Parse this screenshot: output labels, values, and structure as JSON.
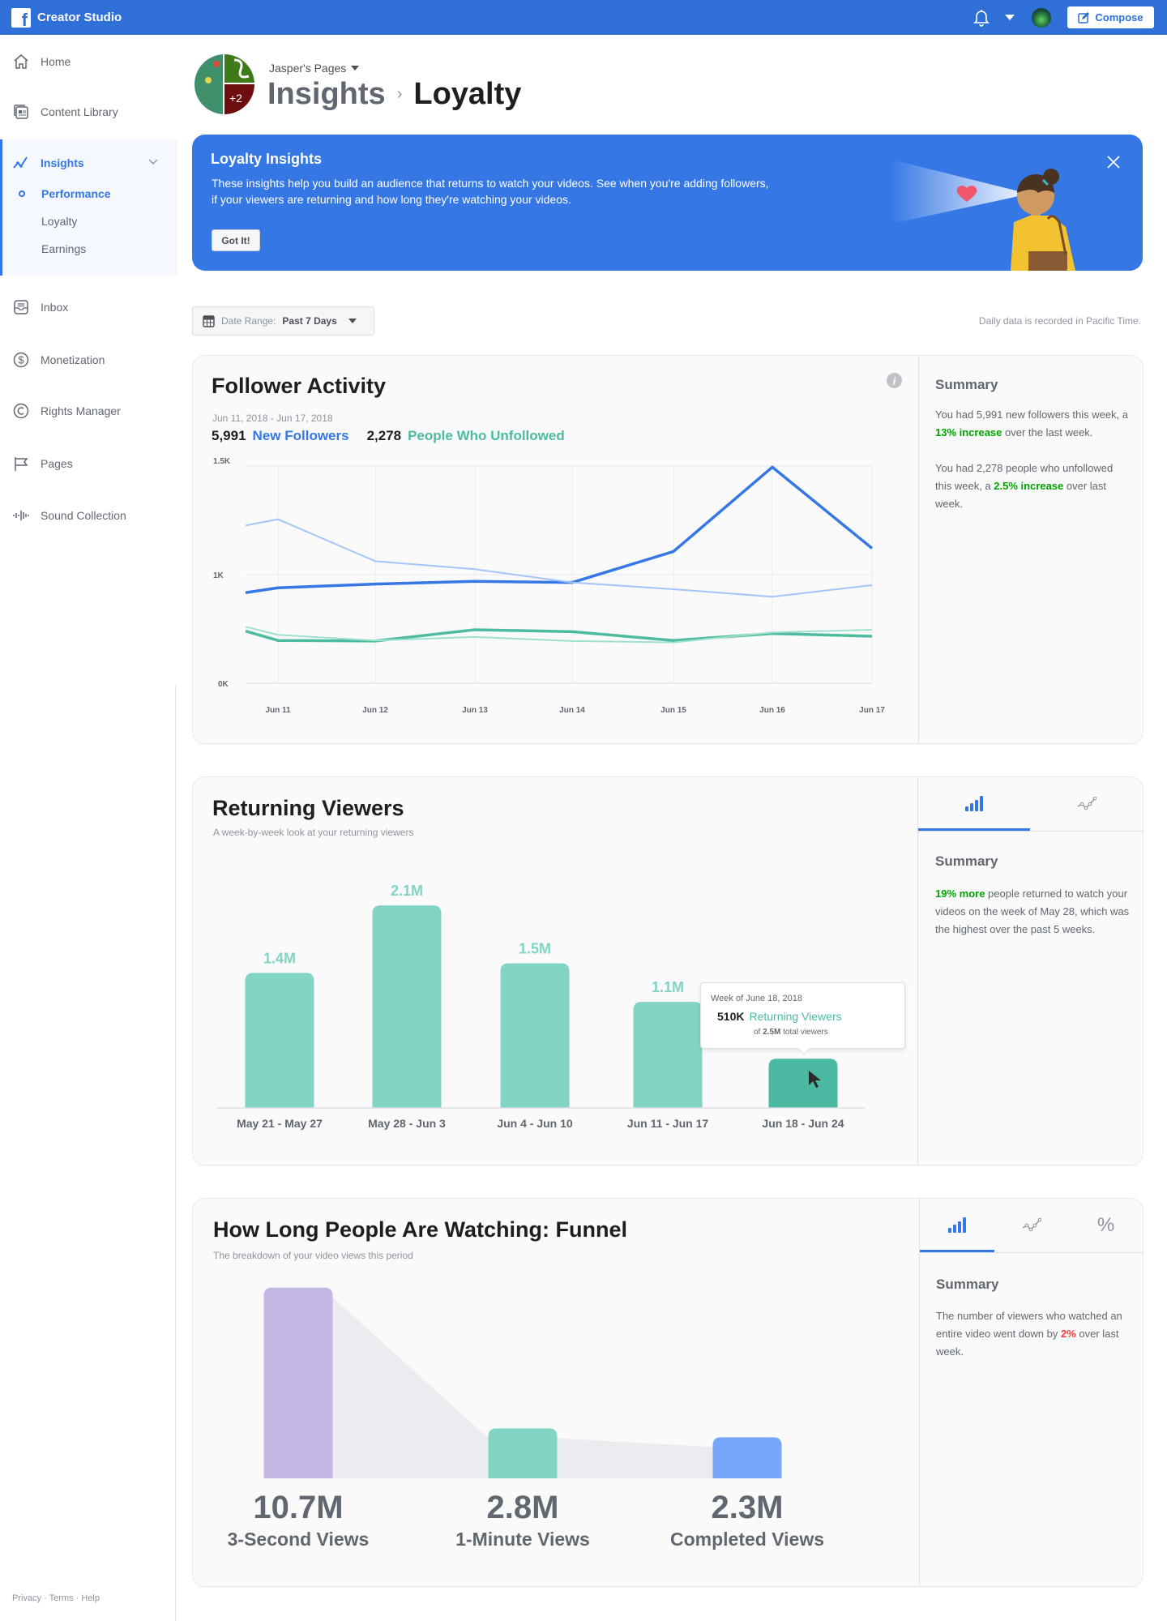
{
  "topbar": {
    "app_title": "Creator Studio",
    "compose_label": "Compose",
    "icons": [
      "facebook-logo",
      "bell-icon",
      "caret-down-icon",
      "profile-avatar",
      "compose-icon"
    ]
  },
  "sidebar": {
    "items": [
      {
        "label": "Home",
        "icon": "home-icon"
      },
      {
        "label": "Content Library",
        "icon": "content-library-icon"
      },
      {
        "label": "Insights",
        "icon": "insights-icon"
      },
      {
        "label": "Inbox",
        "icon": "inbox-icon"
      },
      {
        "label": "Monetization",
        "icon": "dollar-icon"
      },
      {
        "label": "Rights Manager",
        "icon": "copyright-icon"
      },
      {
        "label": "Pages",
        "icon": "flag-icon"
      },
      {
        "label": "Sound Collection",
        "icon": "sound-wave-icon"
      }
    ],
    "insights_sub": [
      {
        "label": "Performance",
        "active": true
      },
      {
        "label": "Loyalty"
      },
      {
        "label": "Earnings"
      }
    ],
    "footer": [
      "Privacy",
      "Terms",
      "Help"
    ]
  },
  "header": {
    "page_selector": "Jasper's Pages",
    "breadcrumb_parent": "Insights",
    "breadcrumb_current": "Loyalty"
  },
  "banner": {
    "title": "Loyalty Insights",
    "line1": "These insights help you build an audience that returns to watch your videos. See when you're adding followers,",
    "line2": "if your viewers are returning and how long they're watching your videos.",
    "button": "Got It!"
  },
  "filters": {
    "date_range_label": "Date Range:",
    "date_range_value": "Past 7 Days",
    "timezone_note": "Daily data is recorded in Pacific Time."
  },
  "follower_activity": {
    "title": "Follower Activity",
    "date_range": "Jun 11, 2018 - Jun 17, 2018",
    "new_followers_count": "5,991",
    "new_followers_label": "New Followers",
    "unfollowed_count": "2,278",
    "unfollowed_label": "People Who Unfollowed",
    "summary_title": "Summary",
    "summary": [
      {
        "pre": "You had 5,991 new followers this week, a ",
        "hl": "13% increase",
        "post": " over the last week."
      },
      {
        "pre": "You had 2,278 people who unfollowed this week, a ",
        "hl": "2.5% increase",
        "post": " over last week."
      }
    ]
  },
  "returning_viewers": {
    "title": "Returning Viewers",
    "subtitle": "A week-by-week look at your returning viewers",
    "tabs": [
      {
        "icon": "bar-chart-icon",
        "active": true
      },
      {
        "icon": "line-chart-icon"
      }
    ],
    "tooltip": {
      "week": "Week of June 18, 2018",
      "value": "510K",
      "label": "Returning Viewers",
      "of": "of",
      "total": "2.5M",
      "total_suffix": "total viewers"
    },
    "summary_title": "Summary",
    "summary": [
      {
        "pre": "",
        "hl": "19% more",
        "post": " people returned to watch your videos on the week of May 28, which was the highest over the past 5 weeks."
      }
    ]
  },
  "funnel": {
    "title": "How Long People Are Watching: Funnel",
    "subtitle": "The breakdown of your video views this period",
    "tabs": [
      {
        "icon": "bar-chart-icon",
        "active": true
      },
      {
        "icon": "line-chart-icon"
      },
      {
        "icon": "percent-icon"
      }
    ],
    "summary_title": "Summary",
    "summary": [
      {
        "pre": "The number of viewers who watched an entire video went down by ",
        "hl": "2%",
        "post": " over last week.",
        "tone": "negative"
      }
    ]
  },
  "chart_data": [
    {
      "type": "line",
      "x": [
        "Jun 11",
        "Jun 12",
        "Jun 13",
        "Jun 14",
        "Jun 15",
        "Jun 16",
        "Jun 17"
      ],
      "y_tick_labels": [
        "0K",
        "1K",
        "1.5K"
      ],
      "leading_point": true,
      "series": [
        {
          "style": "thick",
          "color": "#3578e5",
          "lead": 834,
          "values": [
            879,
            913,
            938,
            928,
            1213,
            1990,
            1243
          ]
        },
        {
          "style": "thin",
          "color": "#a4c4fb",
          "lead": 1453,
          "values": [
            1510,
            1124,
            1050,
            928,
            866,
            797,
            903
          ]
        },
        {
          "style": "thick",
          "color": "#4cbba0",
          "lead": 480,
          "values": [
            394,
            389,
            493,
            475,
            394,
            458,
            433
          ]
        },
        {
          "style": "thin",
          "color": "#9fe0cf",
          "lead": 520,
          "values": [
            446,
            394,
            426,
            389,
            376,
            468,
            493
          ]
        }
      ],
      "grid": true
    },
    {
      "type": "bar",
      "categories": [
        "May 21 - May 27",
        "May 28 - Jun 3",
        "Jun 4 - Jun 10",
        "Jun 11 - Jun 17",
        "Jun 18 - Jun 24"
      ],
      "values": [
        1400000,
        2100000,
        1500000,
        1100000,
        510000
      ],
      "labels": [
        "1.4M",
        "2.1M",
        "1.5M",
        "1.1M",
        ""
      ],
      "highlighted_index": 4,
      "color": "#82d4c4",
      "highlight_color": "#4cbaa2"
    },
    {
      "type": "bar",
      "categories": [
        "3-Second Views",
        "1-Minute Views",
        "Completed Views"
      ],
      "values": [
        10700000,
        2800000,
        2300000
      ],
      "labels": [
        "10.7M",
        "2.8M",
        "2.3M"
      ],
      "colors": [
        "#c5b8e4",
        "#82d4c4",
        "#76a7fa"
      ]
    }
  ]
}
